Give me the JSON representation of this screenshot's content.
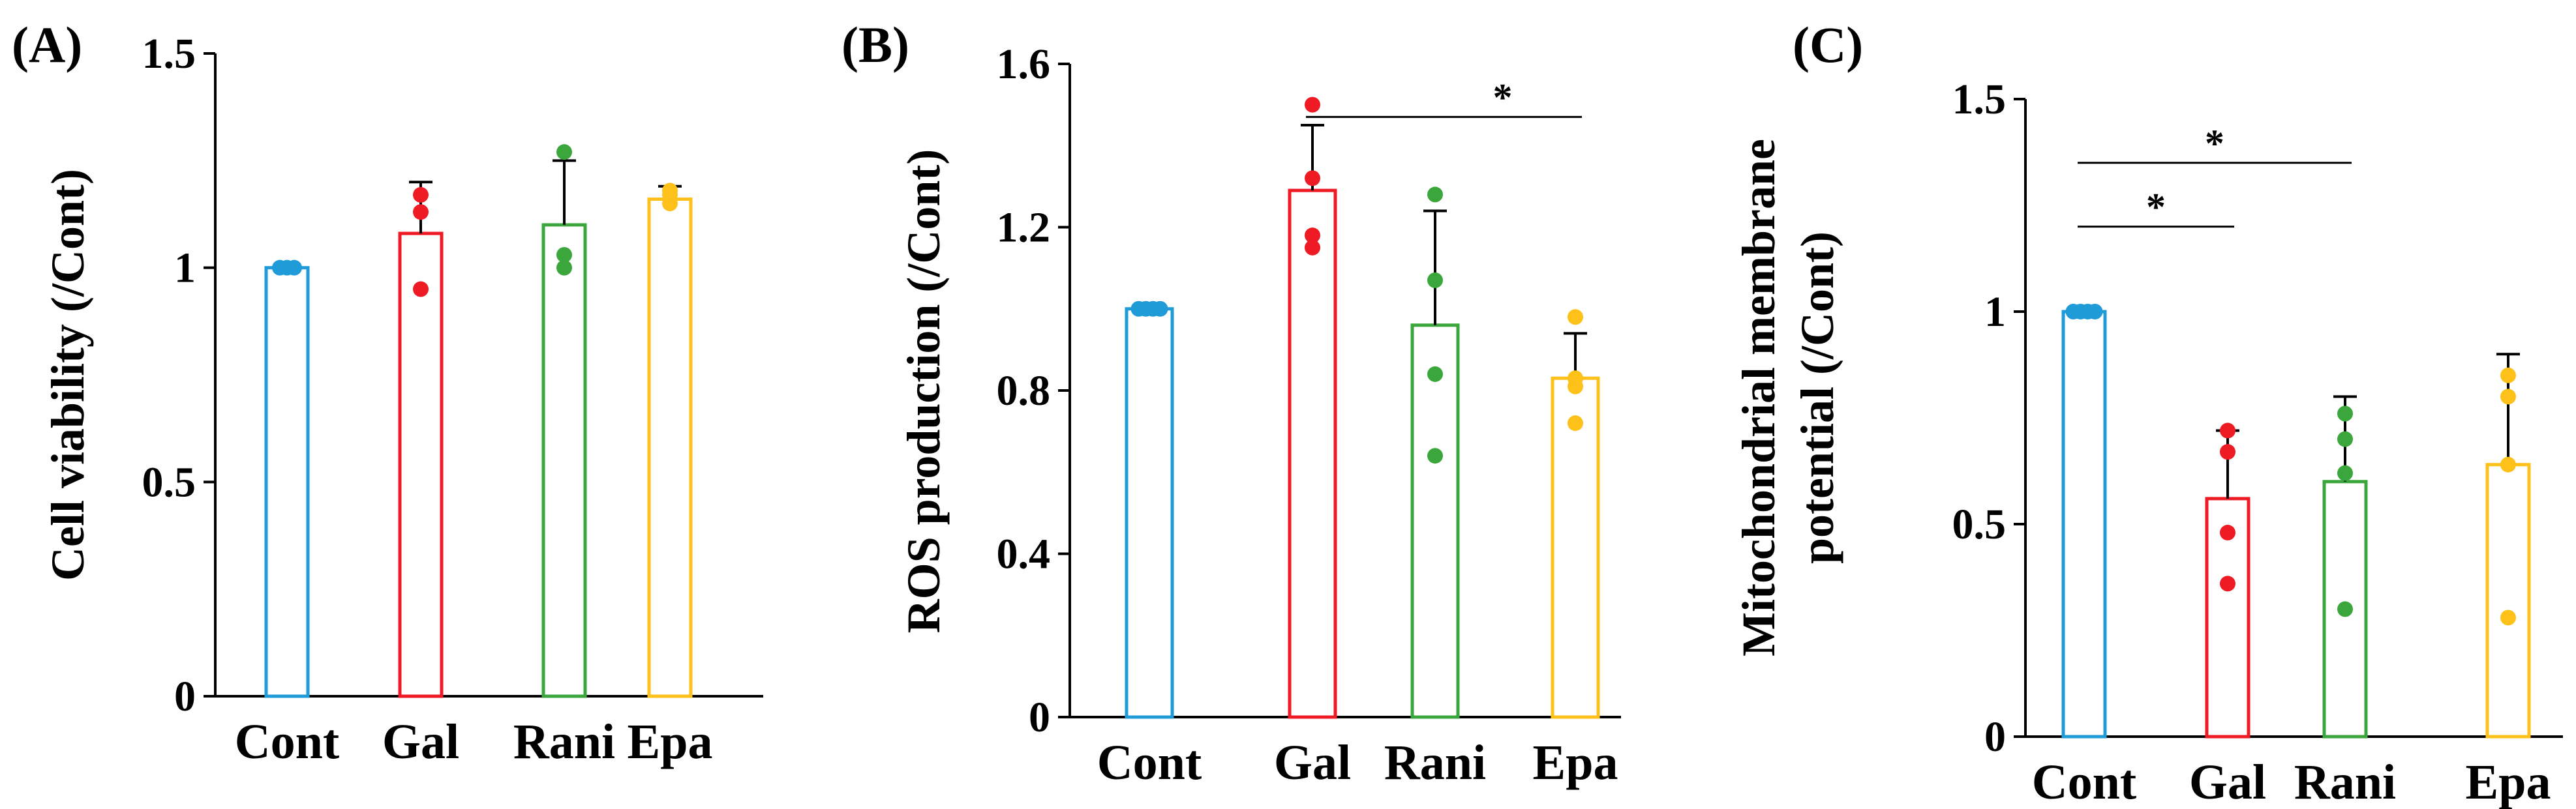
{
  "colors": {
    "Cont": "#1f9bd7",
    "Gal": "#ee1b24",
    "Rani": "#3aa63b",
    "Epa": "#fdc11a",
    "axis": "#000000"
  },
  "chart_data": [
    {
      "type": "bar",
      "panel": "(A)",
      "title": "",
      "xlabel": "",
      "ylabel": "Cell viability (/Cont)",
      "categories": [
        "Cont",
        "Gal",
        "Rani",
        "Epa"
      ],
      "values": [
        1.0,
        1.08,
        1.1,
        1.16
      ],
      "errors": [
        0.0,
        0.12,
        0.15,
        0.03
      ],
      "points": [
        [
          1.0,
          1.0,
          1.0
        ],
        [
          0.95,
          1.13,
          1.17
        ],
        [
          1.0,
          1.03,
          1.27
        ],
        [
          1.15,
          1.17,
          1.18
        ]
      ],
      "ylim": [
        0,
        1.5
      ],
      "yticks": [
        0,
        0.5,
        1,
        1.5
      ],
      "ytick_labels": [
        "0",
        "0.5",
        "1",
        "1.5"
      ],
      "significance": []
    },
    {
      "type": "bar",
      "panel": "(B)",
      "title": "",
      "xlabel": "",
      "ylabel": "ROS production  (/Cont)",
      "categories": [
        "Cont",
        "Gal",
        "Rani",
        "Epa"
      ],
      "values": [
        1.0,
        1.29,
        0.96,
        0.83
      ],
      "errors": [
        0.0,
        0.16,
        0.28,
        0.11
      ],
      "points": [
        [
          1.0,
          1.0,
          1.0,
          1.0
        ],
        [
          1.15,
          1.18,
          1.32,
          1.5
        ],
        [
          0.64,
          0.84,
          1.07,
          1.28
        ],
        [
          0.72,
          0.81,
          0.83,
          0.98
        ]
      ],
      "ylim": [
        0,
        1.6
      ],
      "yticks": [
        0,
        0.4,
        0.8,
        1.2,
        1.6
      ],
      "ytick_labels": [
        "0",
        "0.4",
        "0.8",
        "1.2",
        "1.6"
      ],
      "significance": [
        {
          "from": "Gal",
          "to": "Epa",
          "y": 1.47,
          "label": "*"
        }
      ]
    },
    {
      "type": "bar",
      "panel": "(C)",
      "title": "",
      "xlabel": "",
      "ylabel": "Mitochondrial membrane potential (/Cont)",
      "ylabel_lines": [
        "Mitochondrial membrane",
        "potential (/Cont)"
      ],
      "categories": [
        "Cont",
        "Gal",
        "Rani",
        "Epa"
      ],
      "values": [
        1.0,
        0.56,
        0.6,
        0.64
      ],
      "errors": [
        0.0,
        0.16,
        0.2,
        0.26
      ],
      "points": [
        [
          1.0,
          1.0,
          1.0,
          1.0
        ],
        [
          0.36,
          0.48,
          0.67,
          0.72
        ],
        [
          0.3,
          0.62,
          0.7,
          0.76
        ],
        [
          0.28,
          0.64,
          0.8,
          0.85
        ]
      ],
      "ylim": [
        0,
        1.5
      ],
      "yticks": [
        0,
        0.5,
        1,
        1.5
      ],
      "ytick_labels": [
        "0",
        "0.5",
        "1",
        "1.5"
      ],
      "significance": [
        {
          "from": "Cont",
          "to": "Rani",
          "y": 1.35,
          "label": "*"
        },
        {
          "from": "Cont",
          "to": "Gal",
          "y": 1.2,
          "label": "*"
        }
      ]
    }
  ]
}
